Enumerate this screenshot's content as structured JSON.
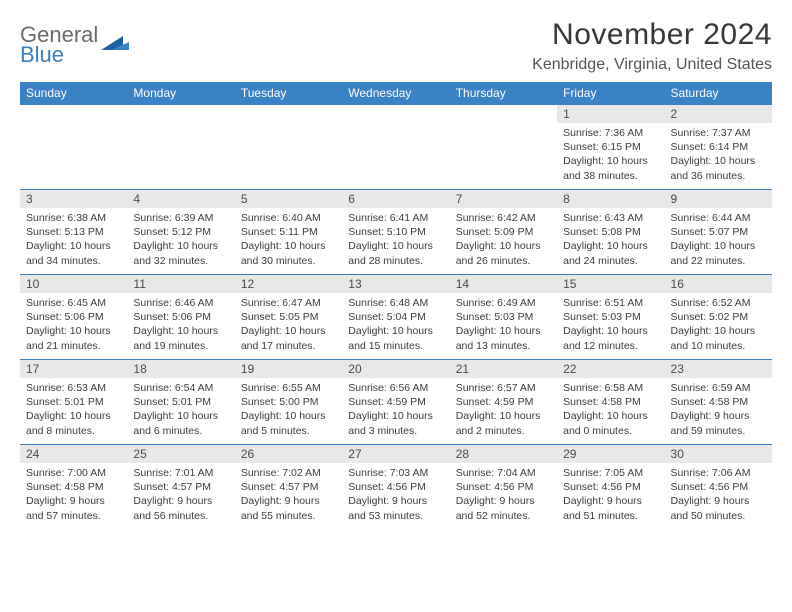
{
  "logo": {
    "word1": "General",
    "word2": "Blue"
  },
  "title": "November 2024",
  "location": "Kenbridge, Virginia, United States",
  "colors": {
    "header_bg": "#3b82c4",
    "header_text": "#ffffff",
    "daynum_bg": "#e8e8e8",
    "border": "#3b82c4",
    "body_text": "#3d3d3d",
    "title_text": "#373737",
    "logo_gray": "#6b6b6b",
    "logo_blue": "#3b7fbf"
  },
  "day_headers": [
    "Sunday",
    "Monday",
    "Tuesday",
    "Wednesday",
    "Thursday",
    "Friday",
    "Saturday"
  ],
  "weeks": [
    [
      {
        "blank": true
      },
      {
        "blank": true
      },
      {
        "blank": true
      },
      {
        "blank": true
      },
      {
        "blank": true
      },
      {
        "num": "1",
        "sunrise": "Sunrise: 7:36 AM",
        "sunset": "Sunset: 6:15 PM",
        "daylight1": "Daylight: 10 hours",
        "daylight2": "and 38 minutes."
      },
      {
        "num": "2",
        "sunrise": "Sunrise: 7:37 AM",
        "sunset": "Sunset: 6:14 PM",
        "daylight1": "Daylight: 10 hours",
        "daylight2": "and 36 minutes."
      }
    ],
    [
      {
        "num": "3",
        "sunrise": "Sunrise: 6:38 AM",
        "sunset": "Sunset: 5:13 PM",
        "daylight1": "Daylight: 10 hours",
        "daylight2": "and 34 minutes."
      },
      {
        "num": "4",
        "sunrise": "Sunrise: 6:39 AM",
        "sunset": "Sunset: 5:12 PM",
        "daylight1": "Daylight: 10 hours",
        "daylight2": "and 32 minutes."
      },
      {
        "num": "5",
        "sunrise": "Sunrise: 6:40 AM",
        "sunset": "Sunset: 5:11 PM",
        "daylight1": "Daylight: 10 hours",
        "daylight2": "and 30 minutes."
      },
      {
        "num": "6",
        "sunrise": "Sunrise: 6:41 AM",
        "sunset": "Sunset: 5:10 PM",
        "daylight1": "Daylight: 10 hours",
        "daylight2": "and 28 minutes."
      },
      {
        "num": "7",
        "sunrise": "Sunrise: 6:42 AM",
        "sunset": "Sunset: 5:09 PM",
        "daylight1": "Daylight: 10 hours",
        "daylight2": "and 26 minutes."
      },
      {
        "num": "8",
        "sunrise": "Sunrise: 6:43 AM",
        "sunset": "Sunset: 5:08 PM",
        "daylight1": "Daylight: 10 hours",
        "daylight2": "and 24 minutes."
      },
      {
        "num": "9",
        "sunrise": "Sunrise: 6:44 AM",
        "sunset": "Sunset: 5:07 PM",
        "daylight1": "Daylight: 10 hours",
        "daylight2": "and 22 minutes."
      }
    ],
    [
      {
        "num": "10",
        "sunrise": "Sunrise: 6:45 AM",
        "sunset": "Sunset: 5:06 PM",
        "daylight1": "Daylight: 10 hours",
        "daylight2": "and 21 minutes."
      },
      {
        "num": "11",
        "sunrise": "Sunrise: 6:46 AM",
        "sunset": "Sunset: 5:06 PM",
        "daylight1": "Daylight: 10 hours",
        "daylight2": "and 19 minutes."
      },
      {
        "num": "12",
        "sunrise": "Sunrise: 6:47 AM",
        "sunset": "Sunset: 5:05 PM",
        "daylight1": "Daylight: 10 hours",
        "daylight2": "and 17 minutes."
      },
      {
        "num": "13",
        "sunrise": "Sunrise: 6:48 AM",
        "sunset": "Sunset: 5:04 PM",
        "daylight1": "Daylight: 10 hours",
        "daylight2": "and 15 minutes."
      },
      {
        "num": "14",
        "sunrise": "Sunrise: 6:49 AM",
        "sunset": "Sunset: 5:03 PM",
        "daylight1": "Daylight: 10 hours",
        "daylight2": "and 13 minutes."
      },
      {
        "num": "15",
        "sunrise": "Sunrise: 6:51 AM",
        "sunset": "Sunset: 5:03 PM",
        "daylight1": "Daylight: 10 hours",
        "daylight2": "and 12 minutes."
      },
      {
        "num": "16",
        "sunrise": "Sunrise: 6:52 AM",
        "sunset": "Sunset: 5:02 PM",
        "daylight1": "Daylight: 10 hours",
        "daylight2": "and 10 minutes."
      }
    ],
    [
      {
        "num": "17",
        "sunrise": "Sunrise: 6:53 AM",
        "sunset": "Sunset: 5:01 PM",
        "daylight1": "Daylight: 10 hours",
        "daylight2": "and 8 minutes."
      },
      {
        "num": "18",
        "sunrise": "Sunrise: 6:54 AM",
        "sunset": "Sunset: 5:01 PM",
        "daylight1": "Daylight: 10 hours",
        "daylight2": "and 6 minutes."
      },
      {
        "num": "19",
        "sunrise": "Sunrise: 6:55 AM",
        "sunset": "Sunset: 5:00 PM",
        "daylight1": "Daylight: 10 hours",
        "daylight2": "and 5 minutes."
      },
      {
        "num": "20",
        "sunrise": "Sunrise: 6:56 AM",
        "sunset": "Sunset: 4:59 PM",
        "daylight1": "Daylight: 10 hours",
        "daylight2": "and 3 minutes."
      },
      {
        "num": "21",
        "sunrise": "Sunrise: 6:57 AM",
        "sunset": "Sunset: 4:59 PM",
        "daylight1": "Daylight: 10 hours",
        "daylight2": "and 2 minutes."
      },
      {
        "num": "22",
        "sunrise": "Sunrise: 6:58 AM",
        "sunset": "Sunset: 4:58 PM",
        "daylight1": "Daylight: 10 hours",
        "daylight2": "and 0 minutes."
      },
      {
        "num": "23",
        "sunrise": "Sunrise: 6:59 AM",
        "sunset": "Sunset: 4:58 PM",
        "daylight1": "Daylight: 9 hours",
        "daylight2": "and 59 minutes."
      }
    ],
    [
      {
        "num": "24",
        "sunrise": "Sunrise: 7:00 AM",
        "sunset": "Sunset: 4:58 PM",
        "daylight1": "Daylight: 9 hours",
        "daylight2": "and 57 minutes."
      },
      {
        "num": "25",
        "sunrise": "Sunrise: 7:01 AM",
        "sunset": "Sunset: 4:57 PM",
        "daylight1": "Daylight: 9 hours",
        "daylight2": "and 56 minutes."
      },
      {
        "num": "26",
        "sunrise": "Sunrise: 7:02 AM",
        "sunset": "Sunset: 4:57 PM",
        "daylight1": "Daylight: 9 hours",
        "daylight2": "and 55 minutes."
      },
      {
        "num": "27",
        "sunrise": "Sunrise: 7:03 AM",
        "sunset": "Sunset: 4:56 PM",
        "daylight1": "Daylight: 9 hours",
        "daylight2": "and 53 minutes."
      },
      {
        "num": "28",
        "sunrise": "Sunrise: 7:04 AM",
        "sunset": "Sunset: 4:56 PM",
        "daylight1": "Daylight: 9 hours",
        "daylight2": "and 52 minutes."
      },
      {
        "num": "29",
        "sunrise": "Sunrise: 7:05 AM",
        "sunset": "Sunset: 4:56 PM",
        "daylight1": "Daylight: 9 hours",
        "daylight2": "and 51 minutes."
      },
      {
        "num": "30",
        "sunrise": "Sunrise: 7:06 AM",
        "sunset": "Sunset: 4:56 PM",
        "daylight1": "Daylight: 9 hours",
        "daylight2": "and 50 minutes."
      }
    ]
  ]
}
